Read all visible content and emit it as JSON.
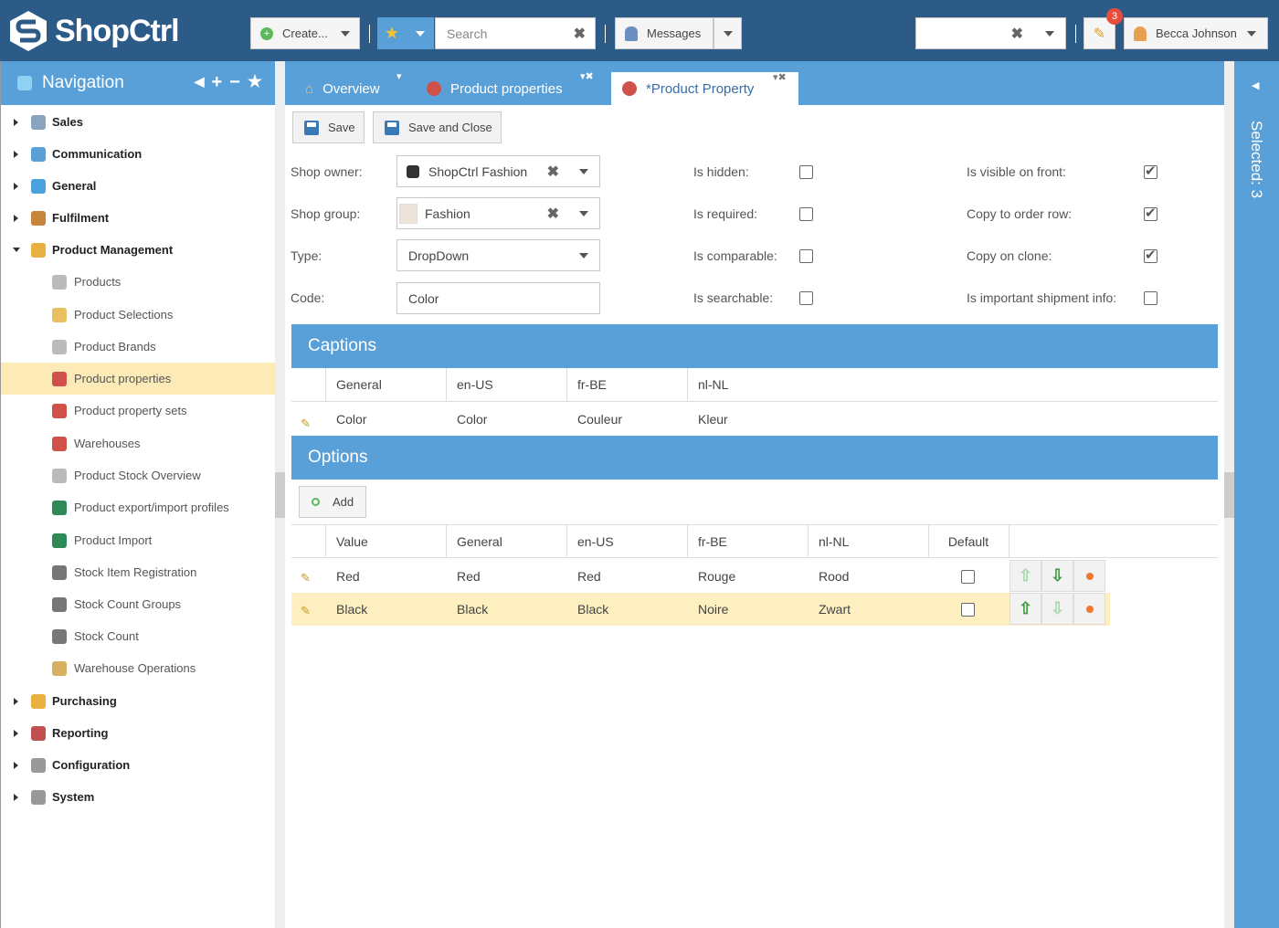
{
  "app": {
    "name": "ShopCtrl"
  },
  "topbar": {
    "create_label": "Create...",
    "search_placeholder": "Search",
    "messages_label": "Messages",
    "notification_count": "3",
    "user_name": "Becca Johnson"
  },
  "sidebar": {
    "title": "Navigation",
    "items": [
      {
        "label": "Sales",
        "level": 0,
        "icon": "cart-icon",
        "color": "#8aa4c0"
      },
      {
        "label": "Communication",
        "level": 0,
        "icon": "chat-icon",
        "color": "#5aa0d8"
      },
      {
        "label": "General",
        "level": 0,
        "icon": "dot-icon",
        "color": "#4aa3df"
      },
      {
        "label": "Fulfilment",
        "level": 0,
        "icon": "box-icon",
        "color": "#c8843a"
      },
      {
        "label": "Product Management",
        "level": 0,
        "icon": "cube-icon",
        "color": "#e8b040",
        "open": true
      },
      {
        "label": "Products",
        "level": 1,
        "icon": "cube-icon",
        "color": "#bbbbbb"
      },
      {
        "label": "Product Selections",
        "level": 1,
        "icon": "folder-icon",
        "color": "#e8c060"
      },
      {
        "label": "Product Brands",
        "level": 1,
        "icon": "cube-icon",
        "color": "#bbbbbb"
      },
      {
        "label": "Product properties",
        "level": 1,
        "icon": "property-icon",
        "color": "#d0504a",
        "active": true
      },
      {
        "label": "Product property sets",
        "level": 1,
        "icon": "property-icon",
        "color": "#d0504a"
      },
      {
        "label": "Warehouses",
        "level": 1,
        "icon": "property-icon",
        "color": "#d0504a"
      },
      {
        "label": "Product Stock Overview",
        "level": 1,
        "icon": "cube-icon",
        "color": "#bbbbbb"
      },
      {
        "label": "Product export/import profiles",
        "level": 1,
        "icon": "excel-icon",
        "color": "#2e8b57"
      },
      {
        "label": "Product Import",
        "level": 1,
        "icon": "excel-icon",
        "color": "#2e8b57"
      },
      {
        "label": "Stock Item Registration",
        "level": 1,
        "icon": "list-icon",
        "color": "#777777"
      },
      {
        "label": "Stock Count Groups",
        "level": 1,
        "icon": "list-icon",
        "color": "#777777"
      },
      {
        "label": "Stock Count",
        "level": 1,
        "icon": "list-icon",
        "color": "#777777"
      },
      {
        "label": "Warehouse Operations",
        "level": 1,
        "icon": "clipboard-icon",
        "color": "#d4b060"
      },
      {
        "label": "Purchasing",
        "level": 0,
        "icon": "purchase-icon",
        "color": "#e8b040"
      },
      {
        "label": "Reporting",
        "level": 0,
        "icon": "report-icon",
        "color": "#c05050"
      },
      {
        "label": "Configuration",
        "level": 0,
        "icon": "gear-icon",
        "color": "#999999"
      },
      {
        "label": "System",
        "level": 0,
        "icon": "gear-icon",
        "color": "#999999"
      }
    ]
  },
  "tabs": [
    {
      "label": "Overview"
    },
    {
      "label": "Product properties"
    },
    {
      "label": "*Product Property"
    }
  ],
  "toolbar": {
    "save_label": "Save",
    "save_close_label": "Save and Close"
  },
  "form": {
    "shop_owner_label": "Shop owner:",
    "shop_owner_value": "ShopCtrl Fashion",
    "shop_group_label": "Shop group:",
    "shop_group_value": "Fashion",
    "type_label": "Type:",
    "type_value": "DropDown",
    "code_label": "Code:",
    "code_value": "Color",
    "checks_mid": [
      {
        "label": "Is hidden:",
        "checked": false
      },
      {
        "label": "Is required:",
        "checked": false
      },
      {
        "label": "Is comparable:",
        "checked": false
      },
      {
        "label": "Is searchable:",
        "checked": false
      }
    ],
    "checks_right": [
      {
        "label": "Is visible on front:",
        "checked": true
      },
      {
        "label": "Copy to order row:",
        "checked": true
      },
      {
        "label": "Copy on clone:",
        "checked": true
      },
      {
        "label": "Is important shipment info:",
        "checked": false
      }
    ]
  },
  "captions": {
    "title": "Captions",
    "headers": [
      "General",
      "en-US",
      "fr-BE",
      "nl-NL"
    ],
    "row": [
      "Color",
      "Color",
      "Couleur",
      "Kleur"
    ]
  },
  "options": {
    "title": "Options",
    "add_label": "Add",
    "headers": [
      "Value",
      "General",
      "en-US",
      "fr-BE",
      "nl-NL",
      "Default"
    ],
    "rows": [
      {
        "cells": [
          "Red",
          "Red",
          "Red",
          "Rouge",
          "Rood"
        ],
        "default": false
      },
      {
        "cells": [
          "Black",
          "Black",
          "Black",
          "Noire",
          "Zwart"
        ],
        "default": false,
        "selected": true
      }
    ]
  },
  "right_panel": {
    "label": "Selected: 3"
  }
}
